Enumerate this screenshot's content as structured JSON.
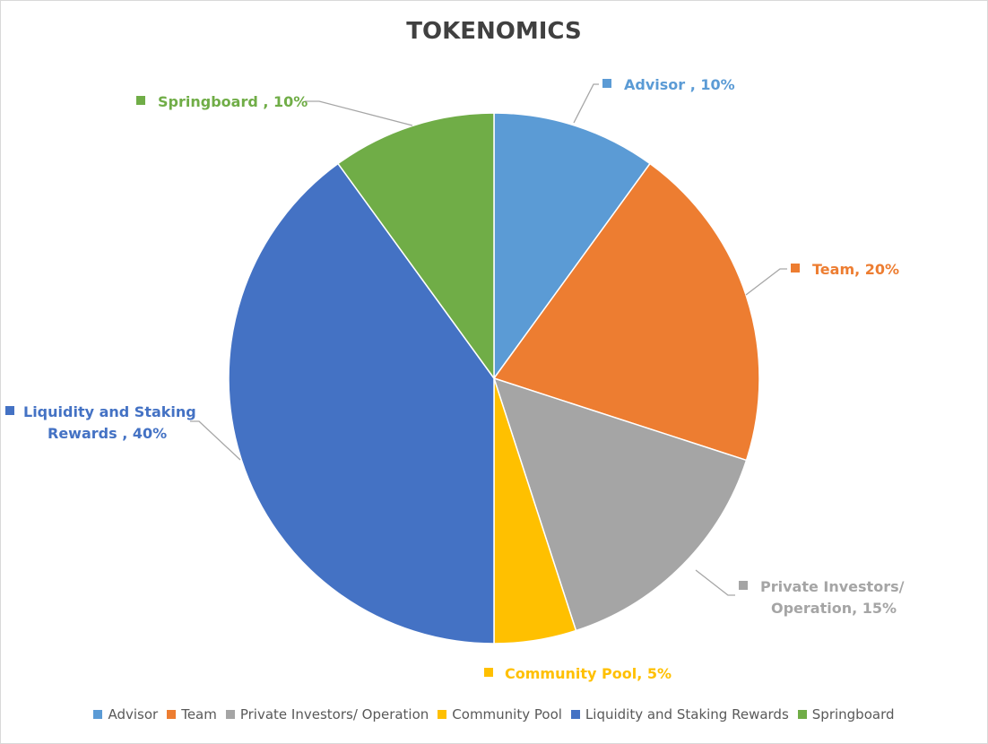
{
  "chart_data": {
    "type": "pie",
    "title": "TOKENOMICS",
    "legend_position": "bottom",
    "slices": [
      {
        "name": "Advisor",
        "value": 10,
        "color": "#5b9bd5",
        "label_lines": [
          "Advisor , 10%"
        ]
      },
      {
        "name": "Team",
        "value": 20,
        "color": "#ed7d31",
        "label_lines": [
          "Team, 20%"
        ]
      },
      {
        "name": "Private Investors/ Operation",
        "value": 15,
        "color": "#a5a5a5",
        "label_lines": [
          "Private Investors/",
          "Operation, 15%"
        ]
      },
      {
        "name": "Community Pool",
        "value": 5,
        "color": "#ffc000",
        "label_lines": [
          "Community Pool, 5%"
        ]
      },
      {
        "name": "Liquidity and Staking Rewards",
        "value": 40,
        "color": "#4472c4",
        "label_lines": [
          "Liquidity and Staking",
          "Rewards , 40%"
        ]
      },
      {
        "name": "Springboard",
        "value": 10,
        "color": "#70ad47",
        "label_lines": [
          "Springboard , 10%"
        ]
      }
    ]
  }
}
